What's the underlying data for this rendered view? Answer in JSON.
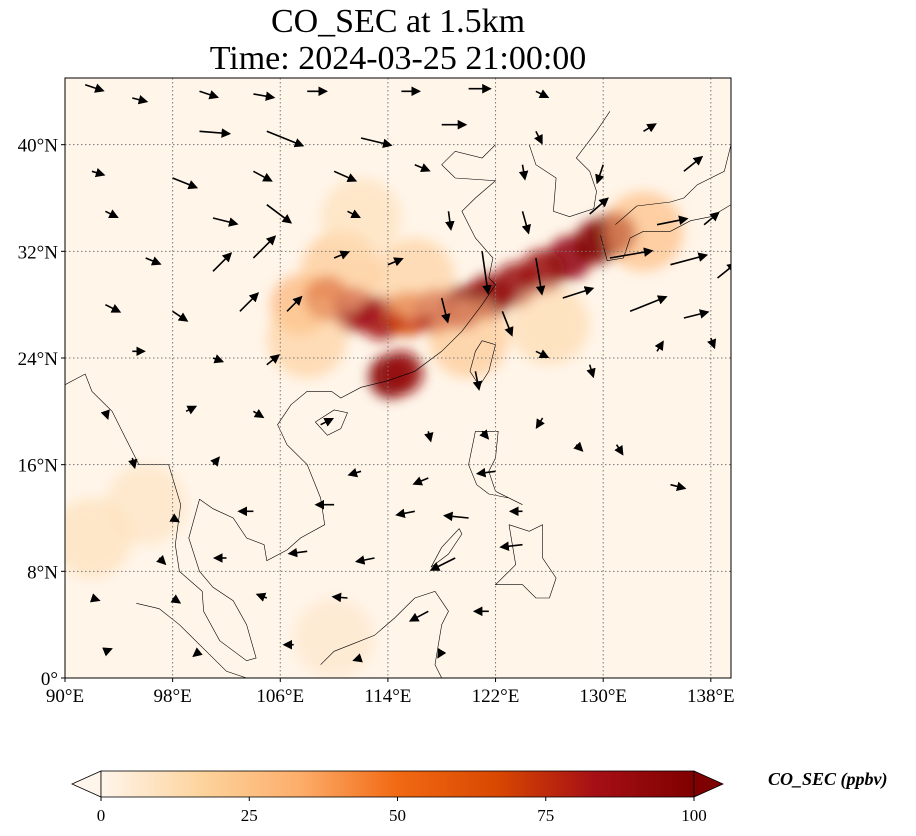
{
  "title": {
    "line1": "CO_SEC at 1.5km",
    "line2": "Time: 2024-03-25 21:00:00"
  },
  "map": {
    "lon_range": [
      90,
      139.5
    ],
    "lat_range": [
      0,
      45
    ],
    "lon_ticks": [
      {
        "value": 90,
        "label": "90°E"
      },
      {
        "value": 98,
        "label": "98°E"
      },
      {
        "value": 106,
        "label": "106°E"
      },
      {
        "value": 114,
        "label": "114°E"
      },
      {
        "value": 122,
        "label": "122°E"
      },
      {
        "value": 130,
        "label": "130°E"
      },
      {
        "value": 138,
        "label": "138°E"
      }
    ],
    "lat_ticks": [
      {
        "value": 0,
        "label": "0°"
      },
      {
        "value": 8,
        "label": "8°N"
      },
      {
        "value": 16,
        "label": "16°N"
      },
      {
        "value": 24,
        "label": "24°N"
      },
      {
        "value": 32,
        "label": "32°N"
      },
      {
        "value": 40,
        "label": "40°N"
      }
    ],
    "gridlines": true,
    "colors": {
      "background": "#fff5e9",
      "coast": "#000000",
      "grid": "#777777",
      "wind_vector": "#000000"
    },
    "plume": [
      {
        "lon": 107.5,
        "lat": 28.0,
        "value": 35
      },
      {
        "lon": 109.5,
        "lat": 28.5,
        "value": 75
      },
      {
        "lon": 111.5,
        "lat": 27.6,
        "value": 85
      },
      {
        "lon": 113.5,
        "lat": 27.0,
        "value": 85
      },
      {
        "lon": 115.5,
        "lat": 27.3,
        "value": 70
      },
      {
        "lon": 117.5,
        "lat": 27.5,
        "value": 80
      },
      {
        "lon": 119.5,
        "lat": 27.8,
        "value": 90
      },
      {
        "lon": 121.5,
        "lat": 28.6,
        "value": 95
      },
      {
        "lon": 123.5,
        "lat": 29.5,
        "value": 90
      },
      {
        "lon": 125.5,
        "lat": 30.5,
        "value": 88
      },
      {
        "lon": 127.5,
        "lat": 31.5,
        "value": 92
      },
      {
        "lon": 129.5,
        "lat": 32.7,
        "value": 100
      },
      {
        "lon": 130.8,
        "lat": 33.3,
        "value": 100
      },
      {
        "lon": 114.2,
        "lat": 22.6,
        "value": 100
      },
      {
        "lon": 115.0,
        "lat": 22.9,
        "value": 90
      },
      {
        "lon": 110.5,
        "lat": 30.5,
        "value": 25
      },
      {
        "lon": 108.0,
        "lat": 25.5,
        "value": 20
      },
      {
        "lon": 116.0,
        "lat": 30.0,
        "value": 20
      },
      {
        "lon": 120.0,
        "lat": 25.5,
        "value": 25
      },
      {
        "lon": 126.0,
        "lat": 26.5,
        "value": 15
      },
      {
        "lon": 133.0,
        "lat": 33.5,
        "value": 30
      },
      {
        "lon": 112.0,
        "lat": 34.5,
        "value": 12
      },
      {
        "lon": 92.0,
        "lat": 10.5,
        "value": 12
      },
      {
        "lon": 96.0,
        "lat": 13.0,
        "value": 10
      },
      {
        "lon": 110.0,
        "lat": 3.0,
        "value": 8
      }
    ],
    "wind_vectors": [
      {
        "lon": 91.5,
        "lat": 44.5,
        "u": 1.5,
        "v": -0.5
      },
      {
        "lon": 95,
        "lat": 43.5,
        "u": 1.2,
        "v": -0.3
      },
      {
        "lon": 100,
        "lat": 44,
        "u": 1.5,
        "v": -0.5
      },
      {
        "lon": 104,
        "lat": 43.8,
        "u": 1.7,
        "v": -0.3
      },
      {
        "lon": 108,
        "lat": 44,
        "u": 1.6,
        "v": 0
      },
      {
        "lon": 115,
        "lat": 44,
        "u": 1.5,
        "v": 0
      },
      {
        "lon": 120,
        "lat": 44.2,
        "u": 1.8,
        "v": 0
      },
      {
        "lon": 125,
        "lat": 44,
        "u": 1.0,
        "v": -0.5
      },
      {
        "lon": 100,
        "lat": 41,
        "u": 2.5,
        "v": -0.2
      },
      {
        "lon": 105,
        "lat": 41,
        "u": 3.0,
        "v": -1.2
      },
      {
        "lon": 112,
        "lat": 40.5,
        "u": 2.5,
        "v": -0.6
      },
      {
        "lon": 118,
        "lat": 41.5,
        "u": 2.0,
        "v": 0
      },
      {
        "lon": 125,
        "lat": 41,
        "u": 0.5,
        "v": -1.0
      },
      {
        "lon": 133,
        "lat": 41,
        "u": 1.0,
        "v": 0.6
      },
      {
        "lon": 92,
        "lat": 38,
        "u": 1.0,
        "v": -0.3
      },
      {
        "lon": 98,
        "lat": 37.5,
        "u": 2.0,
        "v": -0.8
      },
      {
        "lon": 104,
        "lat": 38,
        "u": 1.5,
        "v": -0.8
      },
      {
        "lon": 110,
        "lat": 38,
        "u": 1.8,
        "v": -0.8
      },
      {
        "lon": 116,
        "lat": 38.5,
        "u": 1.2,
        "v": -0.5
      },
      {
        "lon": 124,
        "lat": 38.5,
        "u": 0.2,
        "v": -1.2
      },
      {
        "lon": 130,
        "lat": 38.5,
        "u": -0.5,
        "v": -1.5
      },
      {
        "lon": 136,
        "lat": 38,
        "u": 1.5,
        "v": 1.2
      },
      {
        "lon": 93,
        "lat": 35,
        "u": 1.0,
        "v": -0.5
      },
      {
        "lon": 101,
        "lat": 34.5,
        "u": 2.0,
        "v": -0.5
      },
      {
        "lon": 105,
        "lat": 35.5,
        "u": 2.0,
        "v": -1.5
      },
      {
        "lon": 111,
        "lat": 35,
        "u": 1.0,
        "v": -0.5
      },
      {
        "lon": 118.5,
        "lat": 35,
        "u": 0.2,
        "v": -1.5
      },
      {
        "lon": 124,
        "lat": 35,
        "u": 0.5,
        "v": -1.8
      },
      {
        "lon": 129,
        "lat": 34.8,
        "u": 1.5,
        "v": 1.3
      },
      {
        "lon": 134,
        "lat": 34,
        "u": 2.5,
        "v": 0.5
      },
      {
        "lon": 137.5,
        "lat": 34,
        "u": 1.2,
        "v": 1.0
      },
      {
        "lon": 96,
        "lat": 31.5,
        "u": 1.2,
        "v": -0.5
      },
      {
        "lon": 101,
        "lat": 30.5,
        "u": 1.5,
        "v": 1.5
      },
      {
        "lon": 104,
        "lat": 31.5,
        "u": 1.8,
        "v": 1.8
      },
      {
        "lon": 110,
        "lat": 31.5,
        "u": 1.2,
        "v": 0.5
      },
      {
        "lon": 114,
        "lat": 31,
        "u": 1.2,
        "v": 0.5
      },
      {
        "lon": 121,
        "lat": 32,
        "u": 0.5,
        "v": -3.5
      },
      {
        "lon": 125,
        "lat": 31.5,
        "u": 0.5,
        "v": -3.0
      },
      {
        "lon": 130.5,
        "lat": 31.5,
        "u": 3.5,
        "v": 0.6
      },
      {
        "lon": 135,
        "lat": 31,
        "u": 3.0,
        "v": 0.8
      },
      {
        "lon": 138.5,
        "lat": 30,
        "u": 1.5,
        "v": 1.2
      },
      {
        "lon": 93,
        "lat": 28,
        "u": 1.2,
        "v": -0.6
      },
      {
        "lon": 98,
        "lat": 27.5,
        "u": 1.2,
        "v": -0.8
      },
      {
        "lon": 103,
        "lat": 27.5,
        "u": 1.5,
        "v": 1.5
      },
      {
        "lon": 106.5,
        "lat": 27.5,
        "u": 1.2,
        "v": 1.2
      },
      {
        "lon": 118,
        "lat": 28.5,
        "u": 0.5,
        "v": -2.0
      },
      {
        "lon": 122.5,
        "lat": 27.5,
        "u": 0.8,
        "v": -2.0
      },
      {
        "lon": 127,
        "lat": 28.5,
        "u": 2.5,
        "v": 0.8
      },
      {
        "lon": 132,
        "lat": 27.5,
        "u": 3.0,
        "v": 1.2
      },
      {
        "lon": 136,
        "lat": 27,
        "u": 2.0,
        "v": 0.5
      },
      {
        "lon": 95,
        "lat": 24.5,
        "u": 1.0,
        "v": 0
      },
      {
        "lon": 101,
        "lat": 24,
        "u": 0.8,
        "v": -0.3
      },
      {
        "lon": 105,
        "lat": 23.5,
        "u": 1.0,
        "v": 0.8
      },
      {
        "lon": 120.5,
        "lat": 23,
        "u": 0.3,
        "v": -1.5
      },
      {
        "lon": 125,
        "lat": 24.5,
        "u": 1.0,
        "v": -0.5
      },
      {
        "lon": 129,
        "lat": 23.5,
        "u": 0.3,
        "v": -1.0
      },
      {
        "lon": 134,
        "lat": 24.5,
        "u": 0.5,
        "v": 0.8
      },
      {
        "lon": 138,
        "lat": 25.5,
        "u": 0.3,
        "v": -0.8
      },
      {
        "lon": 93,
        "lat": 20,
        "u": 0.2,
        "v": -0.6
      },
      {
        "lon": 99,
        "lat": 20,
        "u": 0.8,
        "v": 0.4
      },
      {
        "lon": 104,
        "lat": 20,
        "u": 0.8,
        "v": -0.5
      },
      {
        "lon": 109,
        "lat": 19,
        "u": 1.0,
        "v": 0.5
      },
      {
        "lon": 117,
        "lat": 18.5,
        "u": 0.2,
        "v": -0.8
      },
      {
        "lon": 121,
        "lat": 18.5,
        "u": 0.5,
        "v": -0.6
      },
      {
        "lon": 125.5,
        "lat": 19.5,
        "u": -0.5,
        "v": -0.8
      },
      {
        "lon": 128,
        "lat": 17.5,
        "u": 0.5,
        "v": -0.5
      },
      {
        "lon": 131,
        "lat": 17.5,
        "u": 0.5,
        "v": -0.8
      },
      {
        "lon": 95,
        "lat": 16.5,
        "u": 0.2,
        "v": -0.8
      },
      {
        "lon": 101,
        "lat": 16,
        "u": 0.5,
        "v": 0.6
      },
      {
        "lon": 112,
        "lat": 15.5,
        "u": -1.0,
        "v": -0.3
      },
      {
        "lon": 117,
        "lat": 15,
        "u": -1.2,
        "v": -0.5
      },
      {
        "lon": 122,
        "lat": 15.5,
        "u": -1.5,
        "v": -0.2
      },
      {
        "lon": 135,
        "lat": 14.5,
        "u": 1.2,
        "v": -0.3
      },
      {
        "lon": 98,
        "lat": 12,
        "u": 0.5,
        "v": -0.3
      },
      {
        "lon": 104,
        "lat": 12.5,
        "u": -1.2,
        "v": 0
      },
      {
        "lon": 110,
        "lat": 13,
        "u": -1.5,
        "v": 0
      },
      {
        "lon": 116,
        "lat": 12.5,
        "u": -1.5,
        "v": -0.3
      },
      {
        "lon": 120,
        "lat": 12,
        "u": -2.0,
        "v": 0.2
      },
      {
        "lon": 124,
        "lat": 12.5,
        "u": -1.0,
        "v": 0
      },
      {
        "lon": 97,
        "lat": 9,
        "u": 0.5,
        "v": -0.5
      },
      {
        "lon": 102,
        "lat": 9,
        "u": -1.0,
        "v": 0
      },
      {
        "lon": 108,
        "lat": 9.5,
        "u": -1.5,
        "v": -0.2
      },
      {
        "lon": 113,
        "lat": 9,
        "u": -1.5,
        "v": -0.3
      },
      {
        "lon": 119,
        "lat": 9,
        "u": -2.0,
        "v": -1.0
      },
      {
        "lon": 124,
        "lat": 10,
        "u": -1.8,
        "v": -0.2
      },
      {
        "lon": 92,
        "lat": 6,
        "u": 0.6,
        "v": -0.2
      },
      {
        "lon": 98,
        "lat": 6,
        "u": 0.6,
        "v": -0.4
      },
      {
        "lon": 105,
        "lat": 6,
        "u": -0.8,
        "v": 0.3
      },
      {
        "lon": 111,
        "lat": 6,
        "u": -1.2,
        "v": 0.1
      },
      {
        "lon": 117,
        "lat": 5,
        "u": -1.5,
        "v": -0.8
      },
      {
        "lon": 121.5,
        "lat": 5,
        "u": -1.2,
        "v": 0
      },
      {
        "lon": 93,
        "lat": 2,
        "u": 0.5,
        "v": 0.2
      },
      {
        "lon": 100,
        "lat": 2,
        "u": -0.5,
        "v": -0.4
      },
      {
        "lon": 107,
        "lat": 2.5,
        "u": -0.8,
        "v": 0
      },
      {
        "lon": 112,
        "lat": 1.5,
        "u": -0.6,
        "v": -0.2
      },
      {
        "lon": 118,
        "lat": 2,
        "u": -0.3,
        "v": -0.5
      }
    ]
  },
  "colorbar": {
    "label": "CO_SEC (ppbv)",
    "min": 0,
    "max": 100,
    "extend": "both",
    "ticks": [
      {
        "value": 0,
        "label": "0"
      },
      {
        "value": 25,
        "label": "25"
      },
      {
        "value": 50,
        "label": "50"
      },
      {
        "value": 75,
        "label": "75"
      },
      {
        "value": 100,
        "label": "100"
      }
    ],
    "colormap": [
      "#fff5eb",
      "#fdd49e",
      "#fdae6b",
      "#f16913",
      "#d94801",
      "#a50f15",
      "#7f0000"
    ]
  }
}
